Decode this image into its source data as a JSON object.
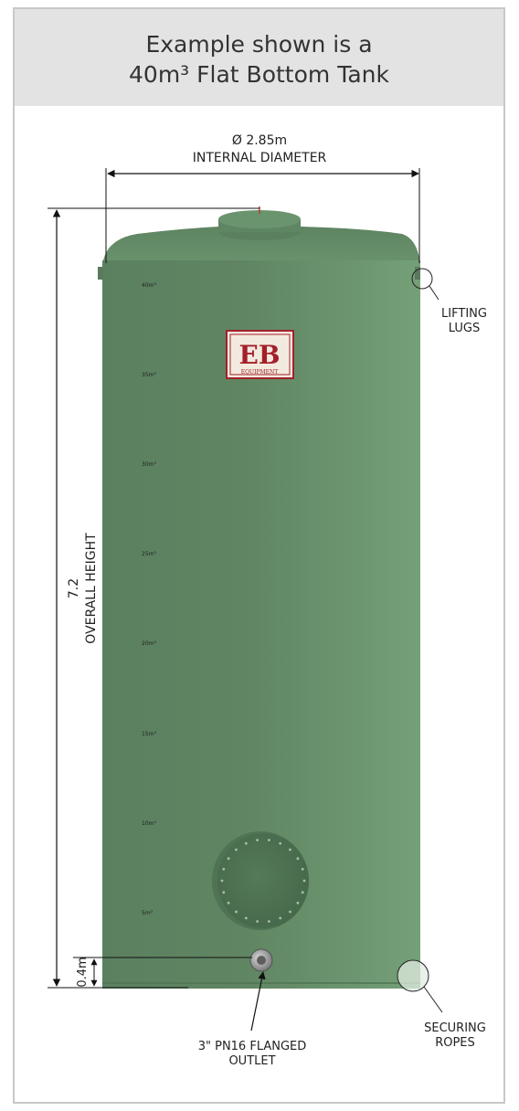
{
  "header": {
    "title_line1": "Example shown is a",
    "title_line2": "40m³ Flat Bottom Tank"
  },
  "diameter": {
    "value": "Ø 2.85m",
    "label": "INTERNAL DIAMETER"
  },
  "height": {
    "value": "7.2",
    "label": "OVERALL HEIGHT"
  },
  "outlet_height": {
    "value": "0.4m"
  },
  "callouts": {
    "lifting_lugs": [
      "LIFTING",
      "LUGS"
    ],
    "securing_ropes": [
      "SECURING",
      "ROPES"
    ],
    "outlet": [
      "3\" PN16 FLANGED",
      "OUTLET"
    ]
  },
  "logo": {
    "letters": "EB",
    "sub": "EQUIPMENT"
  },
  "volume_marks": [
    "40m³",
    "35m³",
    "30m³",
    "25m³",
    "20m³",
    "15m³",
    "10m³",
    "5m³"
  ],
  "colors": {
    "tank_green": "#68906a",
    "header_bg": "#e3e3e3",
    "logo_red": "#a3202a"
  }
}
